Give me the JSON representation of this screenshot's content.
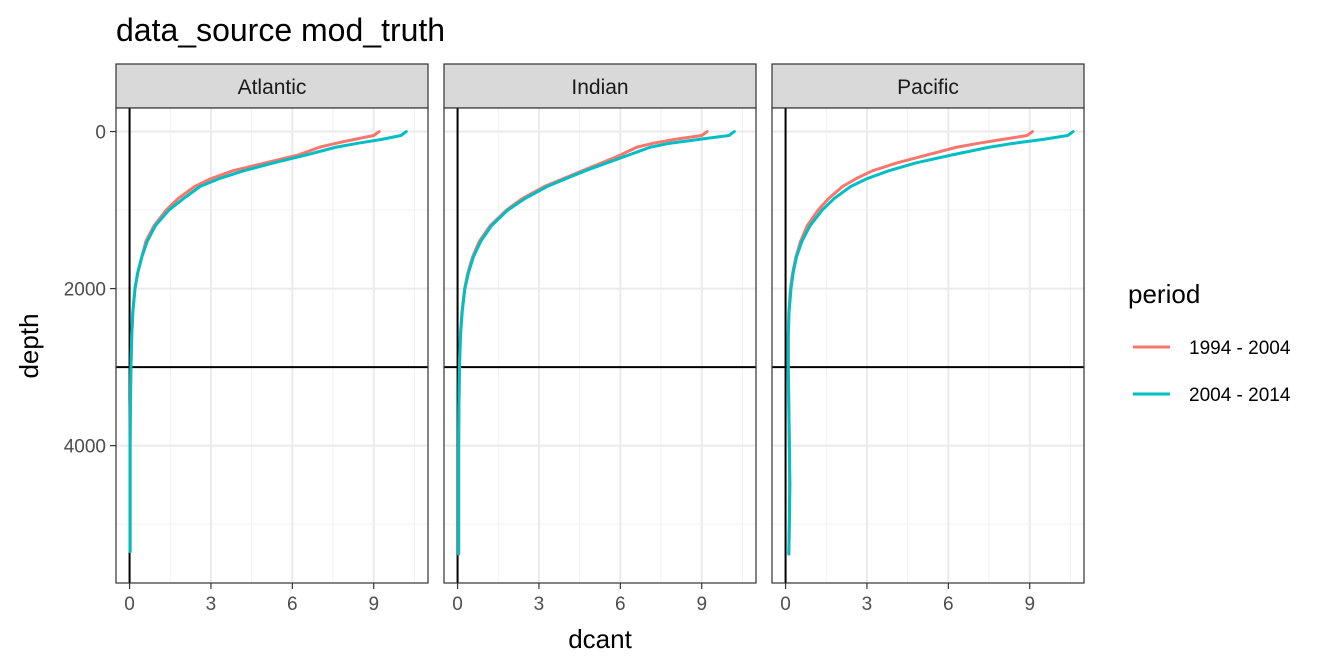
{
  "chart_data": {
    "type": "line",
    "title": "data_source mod_truth",
    "xlabel": "dcant",
    "ylabel": "depth",
    "x_ticks": [
      0,
      3,
      6,
      9
    ],
    "y_ticks": [
      0,
      2000,
      4000
    ],
    "xlim": [
      -0.5,
      11.0
    ],
    "ylim": [
      5750,
      -300
    ],
    "y_reversed": true,
    "grid": true,
    "reference_lines": {
      "vertical_x": 0,
      "horizontal_y": 3000
    },
    "legend": {
      "title": "period",
      "position": "right",
      "entries": [
        {
          "label": "1994 - 2004",
          "color": "#F8766D"
        },
        {
          "label": "2004 - 2014",
          "color": "#00BFC4"
        }
      ]
    },
    "panels": [
      {
        "name": "Atlantic",
        "series": [
          {
            "name": "1994 - 2004",
            "color": "#F8766D",
            "points": [
              [
                9.2,
                0
              ],
              [
                9.0,
                50
              ],
              [
                8.3,
                100
              ],
              [
                7.6,
                150
              ],
              [
                7.0,
                200
              ],
              [
                6.2,
                300
              ],
              [
                5.0,
                400
              ],
              [
                3.8,
                500
              ],
              [
                3.0,
                600
              ],
              [
                2.4,
                700
              ],
              [
                1.8,
                850
              ],
              [
                1.35,
                1000
              ],
              [
                0.9,
                1200
              ],
              [
                0.6,
                1400
              ],
              [
                0.45,
                1600
              ],
              [
                0.3,
                1800
              ],
              [
                0.2,
                2000
              ],
              [
                0.12,
                2300
              ],
              [
                0.08,
                2600
              ],
              [
                0.05,
                3000
              ],
              [
                0.03,
                3500
              ],
              [
                0.02,
                4000
              ],
              [
                0.02,
                4500
              ],
              [
                0.02,
                5000
              ],
              [
                0.02,
                5350
              ]
            ]
          },
          {
            "name": "2004 - 2014",
            "color": "#00BFC4",
            "points": [
              [
                10.2,
                0
              ],
              [
                10.0,
                50
              ],
              [
                9.3,
                100
              ],
              [
                8.4,
                150
              ],
              [
                7.6,
                200
              ],
              [
                6.5,
                300
              ],
              [
                5.3,
                400
              ],
              [
                4.2,
                500
              ],
              [
                3.3,
                600
              ],
              [
                2.6,
                700
              ],
              [
                2.0,
                850
              ],
              [
                1.45,
                1000
              ],
              [
                0.95,
                1200
              ],
              [
                0.65,
                1400
              ],
              [
                0.45,
                1600
              ],
              [
                0.3,
                1800
              ],
              [
                0.2,
                2000
              ],
              [
                0.12,
                2300
              ],
              [
                0.08,
                2600
              ],
              [
                0.05,
                3000
              ],
              [
                0.03,
                3500
              ],
              [
                0.02,
                4000
              ],
              [
                0.02,
                4500
              ],
              [
                0.02,
                5000
              ],
              [
                0.02,
                5350
              ]
            ]
          }
        ]
      },
      {
        "name": "Indian",
        "series": [
          {
            "name": "1994 - 2004",
            "color": "#F8766D",
            "points": [
              [
                9.2,
                0
              ],
              [
                9.0,
                50
              ],
              [
                8.0,
                100
              ],
              [
                7.2,
                150
              ],
              [
                6.6,
                200
              ],
              [
                6.0,
                300
              ],
              [
                5.3,
                400
              ],
              [
                4.6,
                500
              ],
              [
                3.9,
                600
              ],
              [
                3.2,
                700
              ],
              [
                2.4,
                850
              ],
              [
                1.8,
                1000
              ],
              [
                1.2,
                1200
              ],
              [
                0.8,
                1400
              ],
              [
                0.55,
                1600
              ],
              [
                0.38,
                1800
              ],
              [
                0.26,
                2000
              ],
              [
                0.16,
                2300
              ],
              [
                0.1,
                2600
              ],
              [
                0.07,
                3000
              ],
              [
                0.05,
                3500
              ],
              [
                0.04,
                4000
              ],
              [
                0.04,
                4500
              ],
              [
                0.04,
                5000
              ],
              [
                0.04,
                5380
              ]
            ]
          },
          {
            "name": "2004 - 2014",
            "color": "#00BFC4",
            "points": [
              [
                10.2,
                0
              ],
              [
                10.0,
                50
              ],
              [
                8.9,
                100
              ],
              [
                7.8,
                150
              ],
              [
                7.1,
                200
              ],
              [
                6.3,
                300
              ],
              [
                5.5,
                400
              ],
              [
                4.7,
                500
              ],
              [
                4.0,
                600
              ],
              [
                3.3,
                700
              ],
              [
                2.5,
                850
              ],
              [
                1.85,
                1000
              ],
              [
                1.25,
                1200
              ],
              [
                0.85,
                1400
              ],
              [
                0.58,
                1600
              ],
              [
                0.4,
                1800
              ],
              [
                0.27,
                2000
              ],
              [
                0.17,
                2300
              ],
              [
                0.11,
                2600
              ],
              [
                0.07,
                3000
              ],
              [
                0.05,
                3500
              ],
              [
                0.04,
                4000
              ],
              [
                0.04,
                4500
              ],
              [
                0.04,
                5000
              ],
              [
                0.04,
                5380
              ]
            ]
          }
        ]
      },
      {
        "name": "Pacific",
        "series": [
          {
            "name": "1994 - 2004",
            "color": "#F8766D",
            "points": [
              [
                9.1,
                0
              ],
              [
                8.9,
                50
              ],
              [
                8.0,
                100
              ],
              [
                7.1,
                150
              ],
              [
                6.3,
                200
              ],
              [
                5.2,
                300
              ],
              [
                4.1,
                400
              ],
              [
                3.2,
                500
              ],
              [
                2.6,
                600
              ],
              [
                2.1,
                700
              ],
              [
                1.6,
                850
              ],
              [
                1.2,
                1000
              ],
              [
                0.8,
                1200
              ],
              [
                0.55,
                1400
              ],
              [
                0.38,
                1600
              ],
              [
                0.26,
                1800
              ],
              [
                0.18,
                2000
              ],
              [
                0.12,
                2300
              ],
              [
                0.1,
                2600
              ],
              [
                0.1,
                3000
              ],
              [
                0.12,
                3500
              ],
              [
                0.14,
                4000
              ],
              [
                0.15,
                4500
              ],
              [
                0.14,
                5000
              ],
              [
                0.12,
                5380
              ]
            ]
          },
          {
            "name": "2004 - 2014",
            "color": "#00BFC4",
            "points": [
              [
                10.6,
                0
              ],
              [
                10.4,
                50
              ],
              [
                9.5,
                100
              ],
              [
                8.4,
                150
              ],
              [
                7.5,
                200
              ],
              [
                6.1,
                300
              ],
              [
                4.8,
                400
              ],
              [
                3.8,
                500
              ],
              [
                3.0,
                600
              ],
              [
                2.4,
                700
              ],
              [
                1.8,
                850
              ],
              [
                1.35,
                1000
              ],
              [
                0.9,
                1200
              ],
              [
                0.6,
                1400
              ],
              [
                0.4,
                1600
              ],
              [
                0.28,
                1800
              ],
              [
                0.2,
                2000
              ],
              [
                0.13,
                2300
              ],
              [
                0.1,
                2600
              ],
              [
                0.1,
                3000
              ],
              [
                0.12,
                3500
              ],
              [
                0.14,
                4000
              ],
              [
                0.16,
                4500
              ],
              [
                0.14,
                5000
              ],
              [
                0.12,
                5380
              ]
            ]
          }
        ]
      }
    ]
  }
}
